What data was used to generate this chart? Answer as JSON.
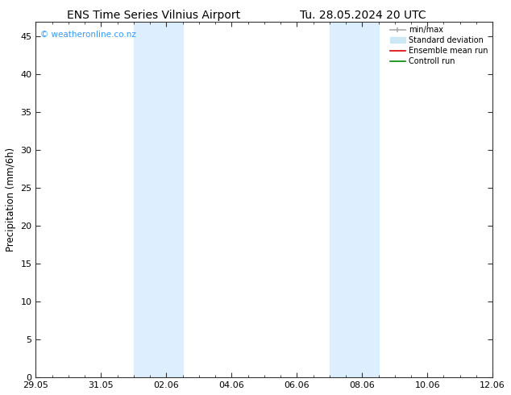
{
  "title_left": "ENS Time Series Vilnius Airport",
  "title_right": "Tu. 28.05.2024 20 UTC",
  "ylabel": "Precipitation (mm/6h)",
  "ylim": [
    0,
    47
  ],
  "yticks": [
    0,
    5,
    10,
    15,
    20,
    25,
    30,
    35,
    40,
    45
  ],
  "xtick_labels": [
    "29.05",
    "31.05",
    "02.06",
    "04.06",
    "06.06",
    "08.06",
    "10.06",
    "12.06"
  ],
  "xtick_positions": [
    0,
    2,
    4,
    6,
    8,
    10,
    12,
    14
  ],
  "x_min": 0,
  "x_max": 14,
  "background_color": "#ffffff",
  "plot_bg_color": "#ffffff",
  "shaded_bands": [
    {
      "x_start": 3.0,
      "x_end": 4.5,
      "color": "#ddeeff"
    },
    {
      "x_start": 9.0,
      "x_end": 10.5,
      "color": "#ddeeff"
    }
  ],
  "watermark_text": "© weatheronline.co.nz",
  "watermark_color": "#3399ff",
  "title_fontsize": 10,
  "tick_fontsize": 8,
  "ylabel_fontsize": 8.5
}
